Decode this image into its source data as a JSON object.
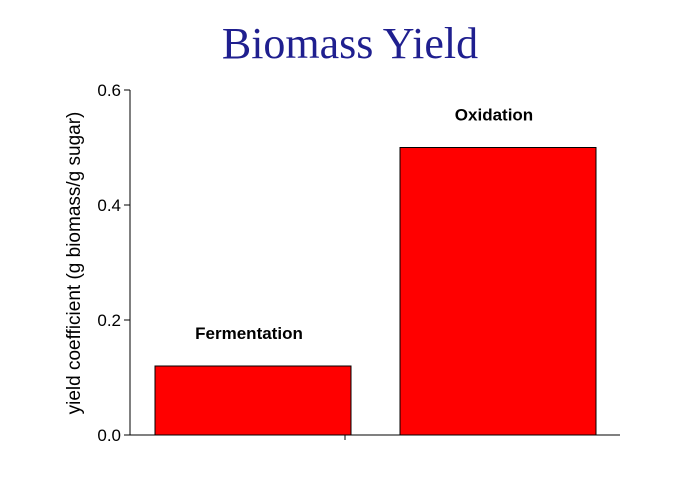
{
  "chart_data": {
    "type": "bar",
    "title": "Biomass Yield",
    "xlabel": "",
    "ylabel": "yield coefficient (g biomass/g sugar)",
    "categories": [
      "Fermentation",
      "Oxidation"
    ],
    "values": [
      0.12,
      0.5
    ],
    "ylim": [
      0,
      0.6
    ],
    "yticks": [
      0.0,
      0.2,
      0.4,
      0.6
    ],
    "ytick_labels": [
      "0.0",
      "0.2",
      "0.4",
      "0.6"
    ],
    "grid": false,
    "bar_color": "#ff0000",
    "title_color": "#1f1f8f"
  }
}
